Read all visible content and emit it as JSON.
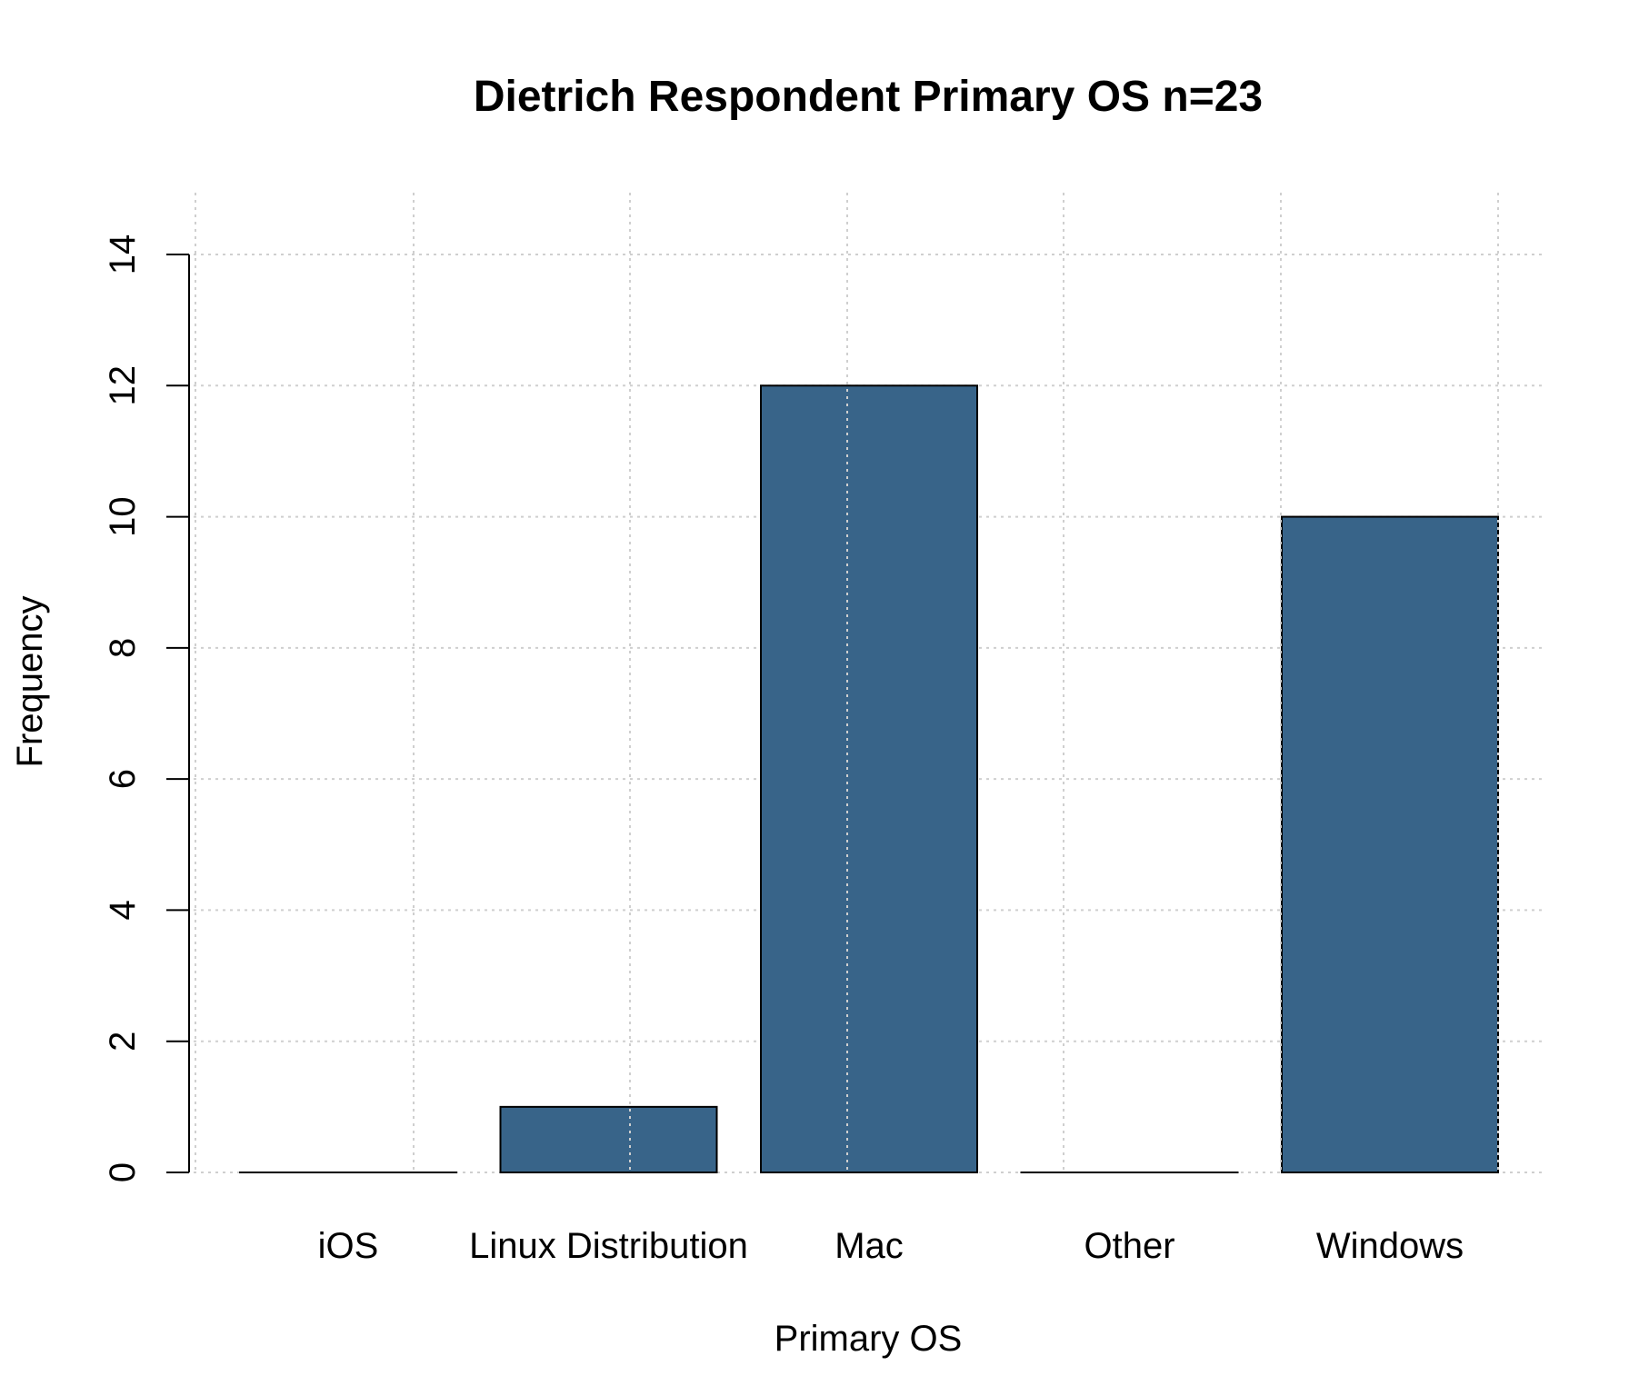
{
  "chart_data": {
    "type": "bar",
    "title": "Dietrich Respondent Primary OS n=23",
    "xlabel": "Primary OS",
    "ylabel": "Frequency",
    "categories": [
      "iOS",
      "Linux Distribution",
      "Mac",
      "Other",
      "Windows"
    ],
    "values": [
      0,
      1,
      12,
      0,
      10
    ],
    "ylim": [
      0,
      14
    ],
    "yticks": [
      0,
      2,
      4,
      6,
      8,
      10,
      12,
      14
    ],
    "grid": true,
    "bar_color": "#386489"
  }
}
